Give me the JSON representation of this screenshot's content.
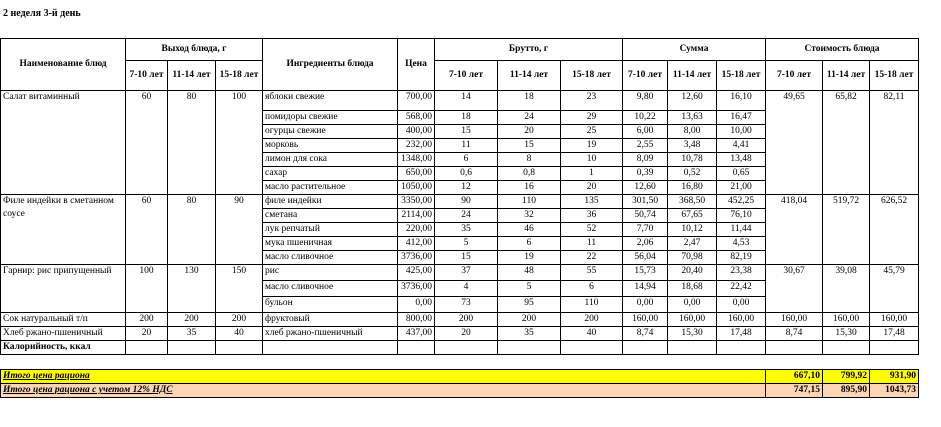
{
  "title": "2 неделя 3-й день",
  "header": {
    "dish": "Наименование блюд",
    "yield": "Выход блюда, г",
    "ingredients": "Ингредиенты блюда",
    "price": "Цена",
    "brutto": "Брутто, г",
    "sum": "Сумма",
    "cost": "Стоимость блюда",
    "age_groups": [
      "7-10 лет",
      "11-14 лет",
      "15-18 лет"
    ]
  },
  "dishes": [
    {
      "name": "Салат витаминный",
      "yield": [
        "60",
        "80",
        "100"
      ],
      "cost": [
        "49,65",
        "65,82",
        "82,11"
      ],
      "ingredients": [
        [
          "яблоки свежие",
          "700,00",
          "14",
          "18",
          "23",
          "9,80",
          "12,60",
          "16,10"
        ],
        [
          "помидоры свежие",
          "568,00",
          "18",
          "24",
          "29",
          "10,22",
          "13,63",
          "16,47"
        ],
        [
          "огурцы свежие",
          "400,00",
          "15",
          "20",
          "25",
          "6,00",
          "8,00",
          "10,00"
        ],
        [
          "морковь",
          "232,00",
          "11",
          "15",
          "19",
          "2,55",
          "3,48",
          "4,41"
        ],
        [
          "лимон для сока",
          "1348,00",
          "6",
          "8",
          "10",
          "8,09",
          "10,78",
          "13,48"
        ],
        [
          "сахар",
          "650,00",
          "0,6",
          "0,8",
          "1",
          "0,39",
          "0,52",
          "0,65"
        ],
        [
          "масло растительное",
          "1050,00",
          "12",
          "16",
          "20",
          "12,60",
          "16,80",
          "21,00"
        ]
      ]
    },
    {
      "name": "Филе индейки в сметанном соусе",
      "yield": [
        "60",
        "80",
        "90"
      ],
      "cost": [
        "418,04",
        "519,72",
        "626,52"
      ],
      "ingredients": [
        [
          "филе индейки",
          "3350,00",
          "90",
          "110",
          "135",
          "301,50",
          "368,50",
          "452,25"
        ],
        [
          "сметана",
          "2114,00",
          "24",
          "32",
          "36",
          "50,74",
          "67,65",
          "76,10"
        ],
        [
          "лук репчатый",
          "220,00",
          "35",
          "46",
          "52",
          "7,70",
          "10,12",
          "11,44"
        ],
        [
          "мука пшеничная",
          "412,00",
          "5",
          "6",
          "11",
          "2,06",
          "2,47",
          "4,53"
        ],
        [
          "масло сливочное",
          "3736,00",
          "15",
          "19",
          "22",
          "56,04",
          "70,98",
          "82,19"
        ]
      ]
    },
    {
      "name": "Гарнир: рис припущенный",
      "yield": [
        "100",
        "130",
        "150"
      ],
      "cost": [
        "30,67",
        "39,08",
        "45,79"
      ],
      "ingredients": [
        [
          "рис",
          "425,00",
          "37",
          "48",
          "55",
          "15,73",
          "20,40",
          "23,38"
        ],
        [
          "масло сливочное",
          "3736,00",
          "4",
          "5",
          "6",
          "14,94",
          "18,68",
          "22,42"
        ],
        [
          "бульон",
          "0,00",
          "73",
          "95",
          "110",
          "0,00",
          "0,00",
          "0,00"
        ]
      ]
    },
    {
      "name": "Сок натуральный т/п",
      "yield": [
        "200",
        "200",
        "200"
      ],
      "cost": [
        "160,00",
        "160,00",
        "160,00"
      ],
      "ingredients": [
        [
          "фруктовый",
          "800,00",
          "200",
          "200",
          "200",
          "160,00",
          "160,00",
          "160,00"
        ]
      ]
    },
    {
      "name": "Хлеб ржано-пшеничный",
      "yield": [
        "20",
        "35",
        "40"
      ],
      "cost": [
        "8,74",
        "15,30",
        "17,48"
      ],
      "ingredients": [
        [
          "хлеб ржано-пшеничный",
          "437,00",
          "20",
          "35",
          "40",
          "8,74",
          "15,30",
          "17,48"
        ]
      ]
    }
  ],
  "calories": "Калорийность, ккал",
  "totals": [
    {
      "label": "Итого цена рациона",
      "values": [
        "667,10",
        "799,92",
        "931,90"
      ]
    },
    {
      "label": "Итого цена рациона с учетом 12% НДС",
      "values": [
        "747,15",
        "895,90",
        "1043,73"
      ]
    }
  ]
}
